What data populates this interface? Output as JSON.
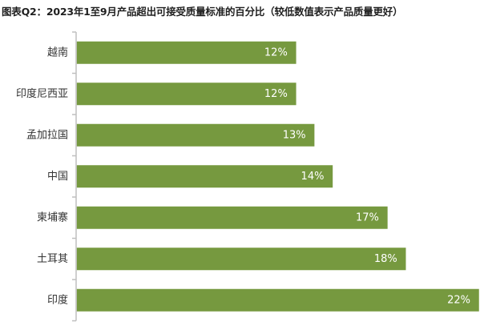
{
  "chart_data": {
    "type": "bar",
    "orientation": "horizontal",
    "title": "图表Q2：2023年1至9月产品超出可接受质量标准的百分比（较低数值表示产品质量更好）",
    "categories": [
      "越南",
      "印度尼西亚",
      "孟加拉国",
      "中国",
      "柬埔寨",
      "土耳其",
      "印度"
    ],
    "values": [
      12,
      12,
      13,
      14,
      17,
      18,
      22
    ],
    "value_labels": [
      "12%",
      "12%",
      "13%",
      "14%",
      "17%",
      "18%",
      "22%"
    ],
    "value_unit": "%",
    "xlim": [
      0,
      22
    ],
    "grid": false,
    "legend": "none",
    "bar_color": "#76993f",
    "axis_color": "#bfbfbf"
  }
}
